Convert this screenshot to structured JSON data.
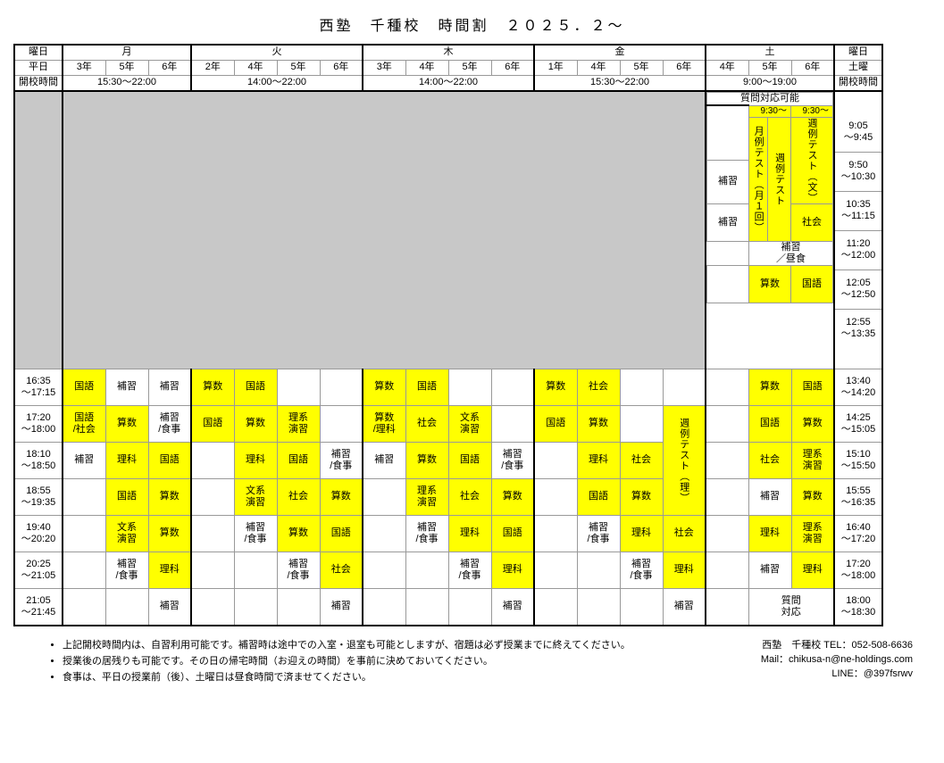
{
  "title": "西塾　千種校　時間割　２０２５．２～",
  "days": [
    "月",
    "火",
    "木",
    "金",
    "土"
  ],
  "header_labels": {
    "weekday": "曜日",
    "grade": "平日",
    "sat_day": "土曜",
    "open": "開校時間"
  },
  "grades_weekday": [
    "3年",
    "5年",
    "6年",
    "2年",
    "4年",
    "5年",
    "6年",
    "3年",
    "4年",
    "5年",
    "6年",
    "1年",
    "4年",
    "5年",
    "6年"
  ],
  "grades_sat": [
    "4年",
    "5年",
    "6年"
  ],
  "open_hours": {
    "mon": "15:30～22:00",
    "tue": "14:00～22:00",
    "thu": "14:00～22:00",
    "fri": "15:30～22:00",
    "sat": "9:00～19:00"
  },
  "time_slots_left": [
    "16:35\n～17:15",
    "17:20\n～18:00",
    "18:10\n～18:50",
    "18:55\n～19:35",
    "19:40\n～20:20",
    "20:25\n～21:05",
    "21:05\n～21:45"
  ],
  "time_slots_right_top": [
    "9:05\n～9:45",
    "9:50\n～10:30",
    "10:35\n～11:15",
    "11:20\n～12:00",
    "12:05\n～12:50",
    "12:55\n～13:35"
  ],
  "time_slots_right_main": [
    "13:40\n～14:20",
    "14:25\n～15:05",
    "15:10\n～15:50",
    "15:55\n～16:35",
    "16:40\n～17:20",
    "17:20\n～18:00",
    "18:00\n～18:30"
  ],
  "sat_top": {
    "banner": "質問対応可能",
    "time_5": "9:30～",
    "time_6": "9:30～",
    "col4_label": "補習",
    "col5_vertical": [
      "月例テスト（月１回）",
      "週例テスト"
    ],
    "col6_vertical": "週例テスト（文）",
    "col6_last": "社会",
    "lunch": "補習\n／昼食",
    "r6_sub5": "算数",
    "r6_sub6": "国語"
  },
  "rows": [
    {
      "l": "16:35\n～17:15",
      "c": [
        "国語",
        "補習",
        "補習",
        "算数",
        "国語",
        "",
        "",
        "算数",
        "国語",
        "",
        "",
        "算数",
        "社会",
        "",
        ""
      ]
    },
    {
      "l": "17:20\n～18:00",
      "c": [
        "国語\n/社会",
        "算数",
        "補習\n/食事",
        "国語",
        "算数",
        "理系\n演習",
        "",
        "算数\n/理科",
        "社会",
        "文系\n演習",
        "",
        "国語",
        "算数",
        "",
        ""
      ]
    },
    {
      "l": "18:10\n～18:50",
      "c": [
        "補習",
        "理科",
        "国語",
        "",
        "理科",
        "国語",
        "補習\n/食事",
        "補習",
        "算数",
        "国語",
        "補習\n/食事",
        "",
        "理科",
        "社会",
        ""
      ]
    },
    {
      "l": "18:55\n～19:35",
      "c": [
        "",
        "国語",
        "算数",
        "",
        "文系\n演習",
        "社会",
        "算数",
        "",
        "理系\n演習",
        "社会",
        "算数",
        "",
        "国語",
        "算数",
        "補習\n/食事"
      ]
    },
    {
      "l": "19:40\n～20:20",
      "c": [
        "",
        "文系\n演習",
        "算数",
        "",
        "補習\n/食事",
        "算数",
        "国語",
        "",
        "補習\n/食事",
        "理科",
        "国語",
        "",
        "補習\n/食事",
        "理科",
        "社会"
      ]
    },
    {
      "l": "20:25\n～21:05",
      "c": [
        "",
        "補習\n/食事",
        "理科",
        "",
        "",
        "補習\n/食事",
        "社会",
        "",
        "",
        "補習\n/食事",
        "理科",
        "",
        "",
        "補習\n/食事",
        "理科"
      ]
    },
    {
      "l": "21:05\n～21:45",
      "c": [
        "",
        "",
        "補習",
        "",
        "",
        "",
        "補習",
        "",
        "",
        "",
        "補習",
        "",
        "",
        "",
        "補習"
      ]
    }
  ],
  "sat_main": [
    [
      "",
      "算数",
      "国語"
    ],
    [
      "",
      "国語",
      "算数"
    ],
    [
      "",
      "社会",
      "理系\n演習"
    ],
    [
      "",
      "補習",
      "算数"
    ],
    [
      "",
      "理科",
      "理系\n演習"
    ],
    [
      "",
      "補習",
      "理科"
    ],
    [
      "",
      "質問\n対応",
      ""
    ]
  ],
  "sat_6yr_vertical": "週例テスト（理）",
  "yellow_subjects": [
    "国語",
    "算数",
    "理科",
    "社会",
    "文系\n演習",
    "理系\n演習",
    "国語\n/社会",
    "算数\n/理科",
    "週例テスト（理）",
    "週例テスト（文）",
    "週例テスト",
    "月例テスト（月１回）"
  ],
  "footer_notes": [
    "上記開校時間内は、自習利用可能です。補習時は途中での入室・退室も可能としますが、宿題は必ず授業までに終えてください。",
    "授業後の居残りも可能です。その日の帰宅時間（お迎えの時間）を事前に決めておいてください。",
    "食事は、平日の授業前（後）、土曜日は昼食時間で済ませてください。"
  ],
  "contact": {
    "name": "西塾　千種校",
    "tel_label": "TEL：",
    "tel": "052-508-6636",
    "mail_label": "Mail：",
    "mail": "chikusa-n@ne-holdings.com",
    "line_label": "LINE：",
    "line": "@397fsrwv"
  }
}
